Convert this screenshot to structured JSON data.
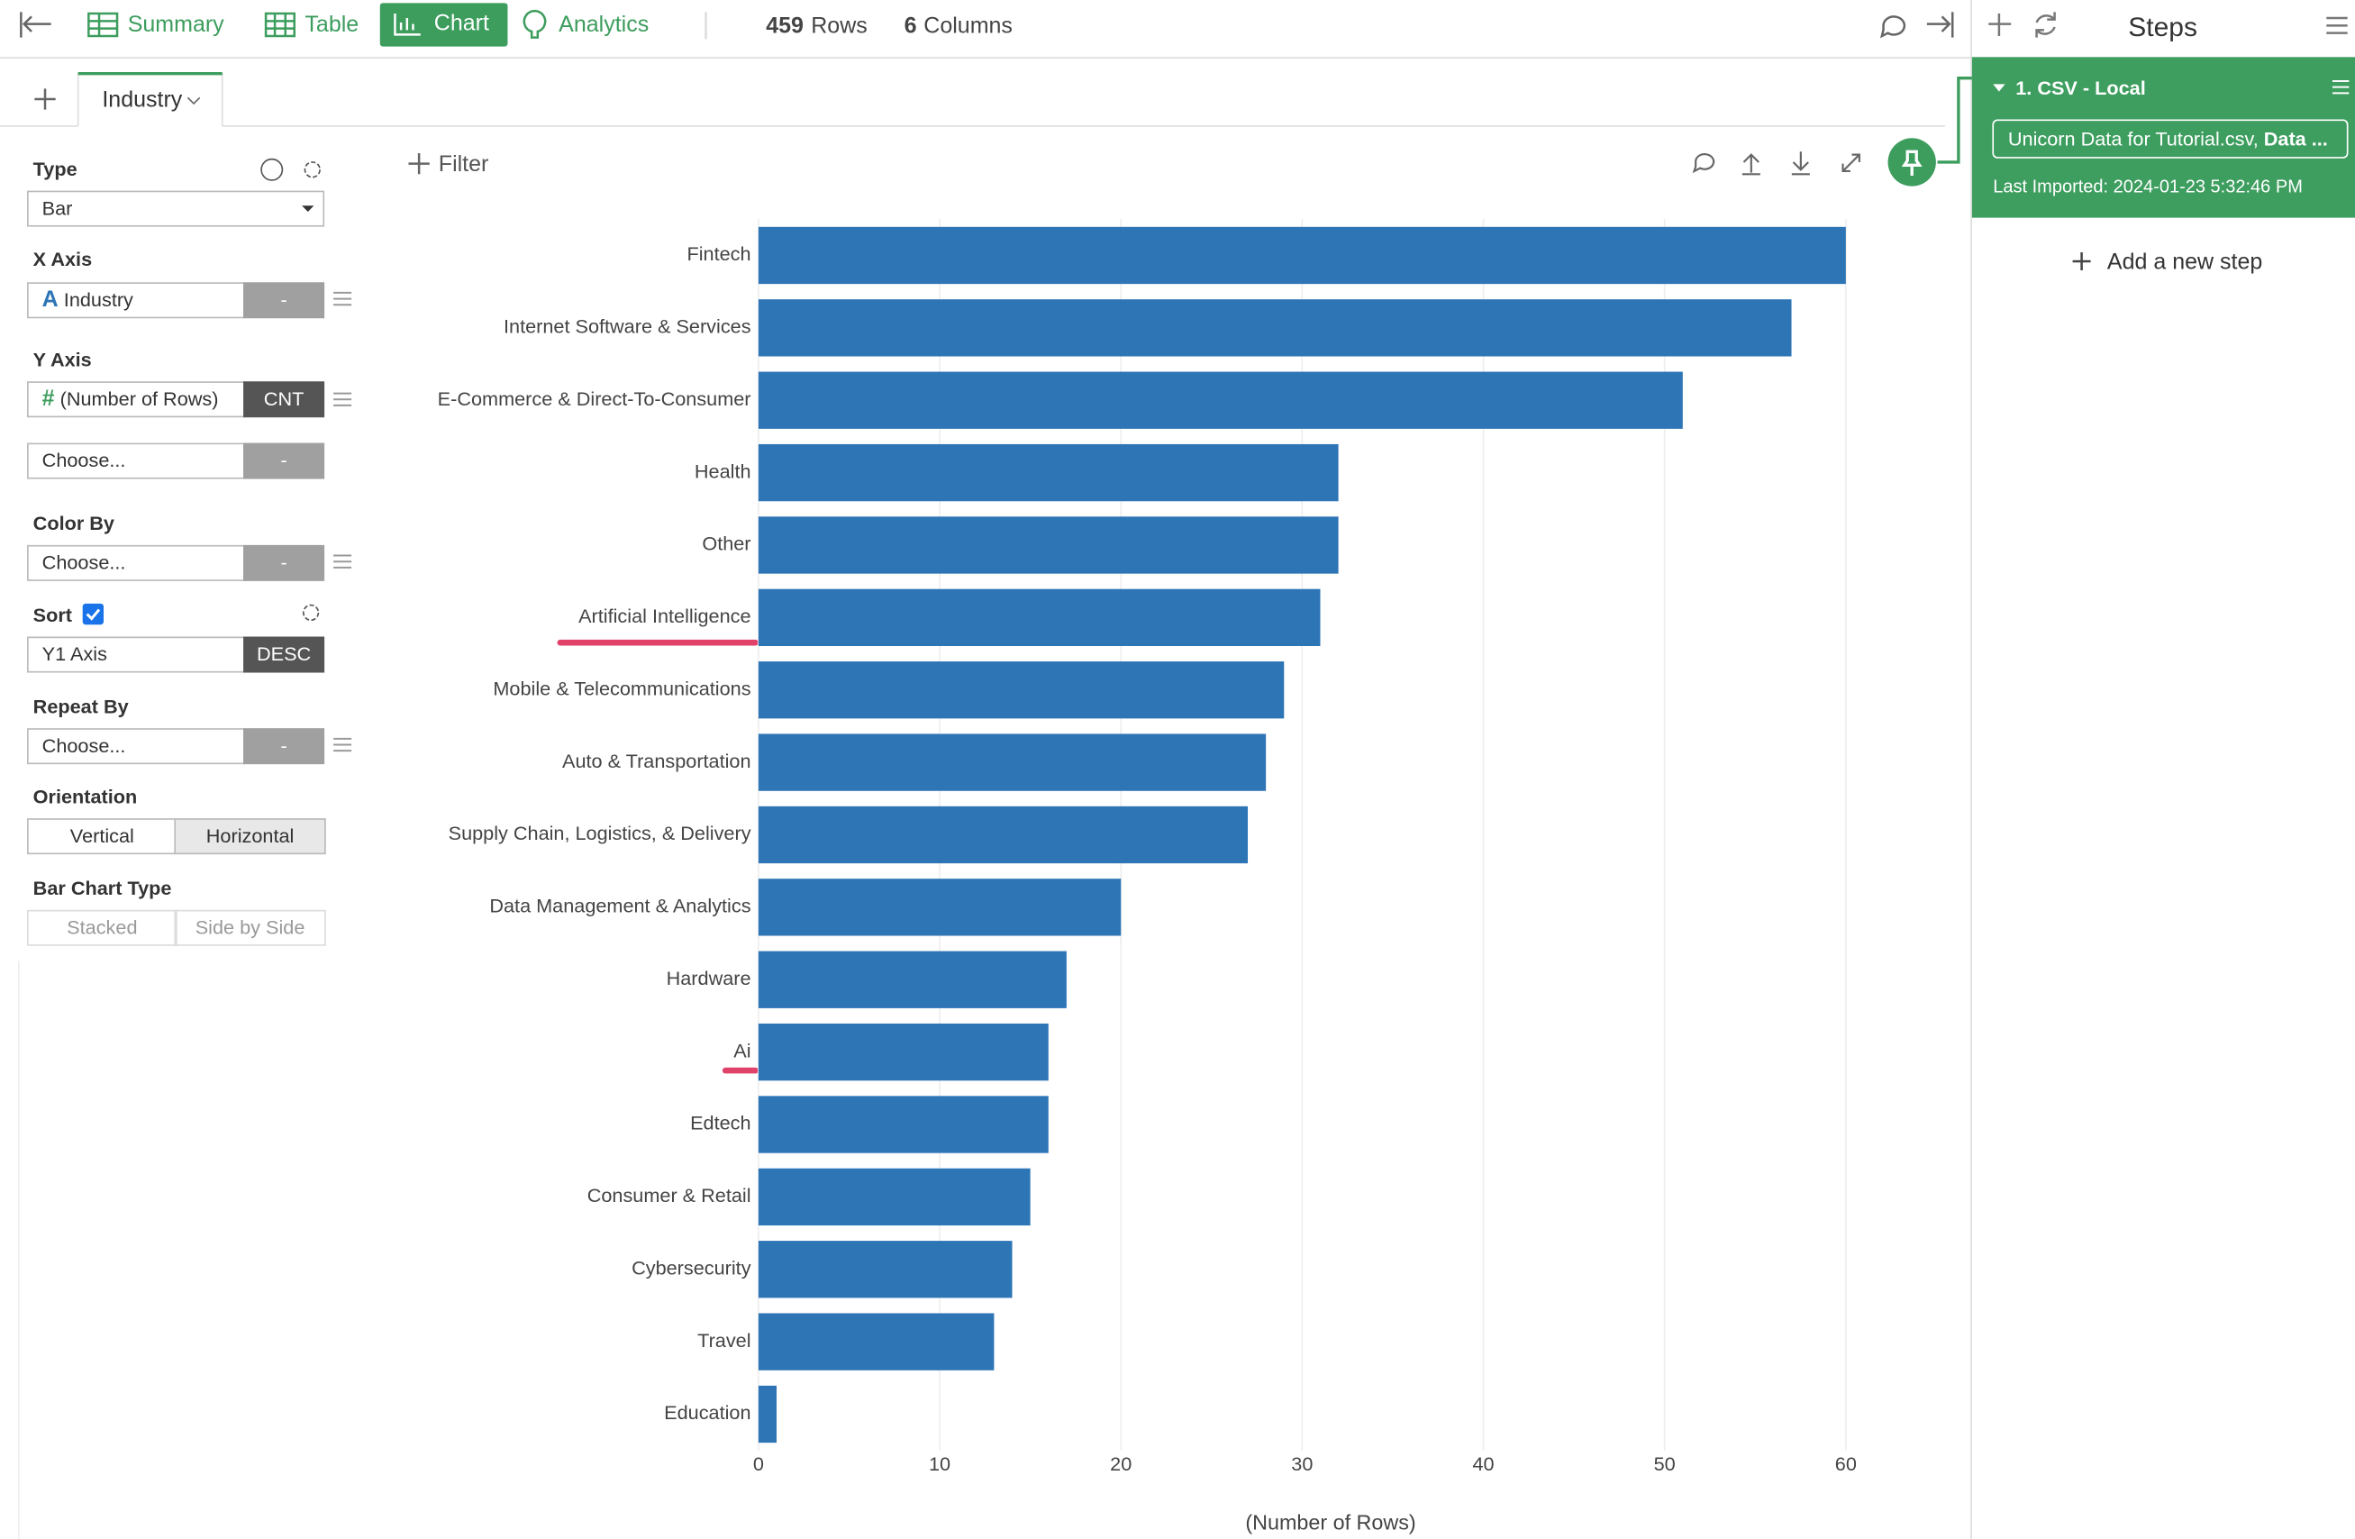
{
  "nav": {
    "summary": "Summary",
    "table": "Table",
    "chart": "Chart",
    "analytics": "Analytics",
    "rows_count": "459",
    "rows_label": "Rows",
    "cols_count": "6",
    "cols_label": "Columns"
  },
  "steps_title": "Steps",
  "tab": "Industry",
  "filter": "Filter",
  "panel": {
    "type_label": "Type",
    "type_value": "Bar",
    "x_axis_label": "X Axis",
    "x_axis_icon": "A",
    "x_axis_value": "Industry",
    "x_axis_agg": "-",
    "y_axis_label": "Y Axis",
    "y_axis_icon": "#",
    "y_axis_value": "(Number of Rows)",
    "y_axis_agg": "CNT",
    "y2_value": "Choose...",
    "y2_agg": "-",
    "color_label": "Color By",
    "color_value": "Choose...",
    "color_agg": "-",
    "sort_label": "Sort",
    "sort_value": "Y1 Axis",
    "sort_order": "DESC",
    "repeat_label": "Repeat By",
    "repeat_value": "Choose...",
    "repeat_agg": "-",
    "orientation_label": "Orientation",
    "orientation_options": [
      "Vertical",
      "Horizontal"
    ],
    "bar_type_label": "Bar Chart Type",
    "bar_type_options": [
      "Stacked",
      "Side by Side"
    ]
  },
  "step": {
    "title": "1. CSV - Local",
    "file": "Unicorn Data for Tutorial.csv, ",
    "file_bold": "Data ...",
    "imported": "Last Imported: 2024-01-23 5:32:46 PM"
  },
  "add_step": "Add a new step",
  "chart_data": {
    "type": "bar",
    "orientation": "horizontal",
    "categories": [
      "Fintech",
      "Internet Software & Services",
      "E-Commerce & Direct-To-Consumer",
      "Health",
      "Other",
      "Artificial Intelligence",
      "Mobile & Telecommunications",
      "Auto & Transportation",
      "Supply Chain, Logistics, & Delivery",
      "Data Management & Analytics",
      "Hardware",
      "Ai",
      "Edtech",
      "Consumer & Retail",
      "Cybersecurity",
      "Travel",
      "Education"
    ],
    "values": [
      60,
      57,
      51,
      32,
      32,
      31,
      29,
      28,
      27,
      20,
      17,
      16,
      16,
      15,
      14,
      13,
      1
    ],
    "color": "#2e75b6",
    "xlim": [
      0,
      60
    ],
    "xticks": [
      0,
      10,
      20,
      30,
      40,
      50,
      60
    ],
    "xlabel": "(Number of Rows)",
    "grid": true
  }
}
